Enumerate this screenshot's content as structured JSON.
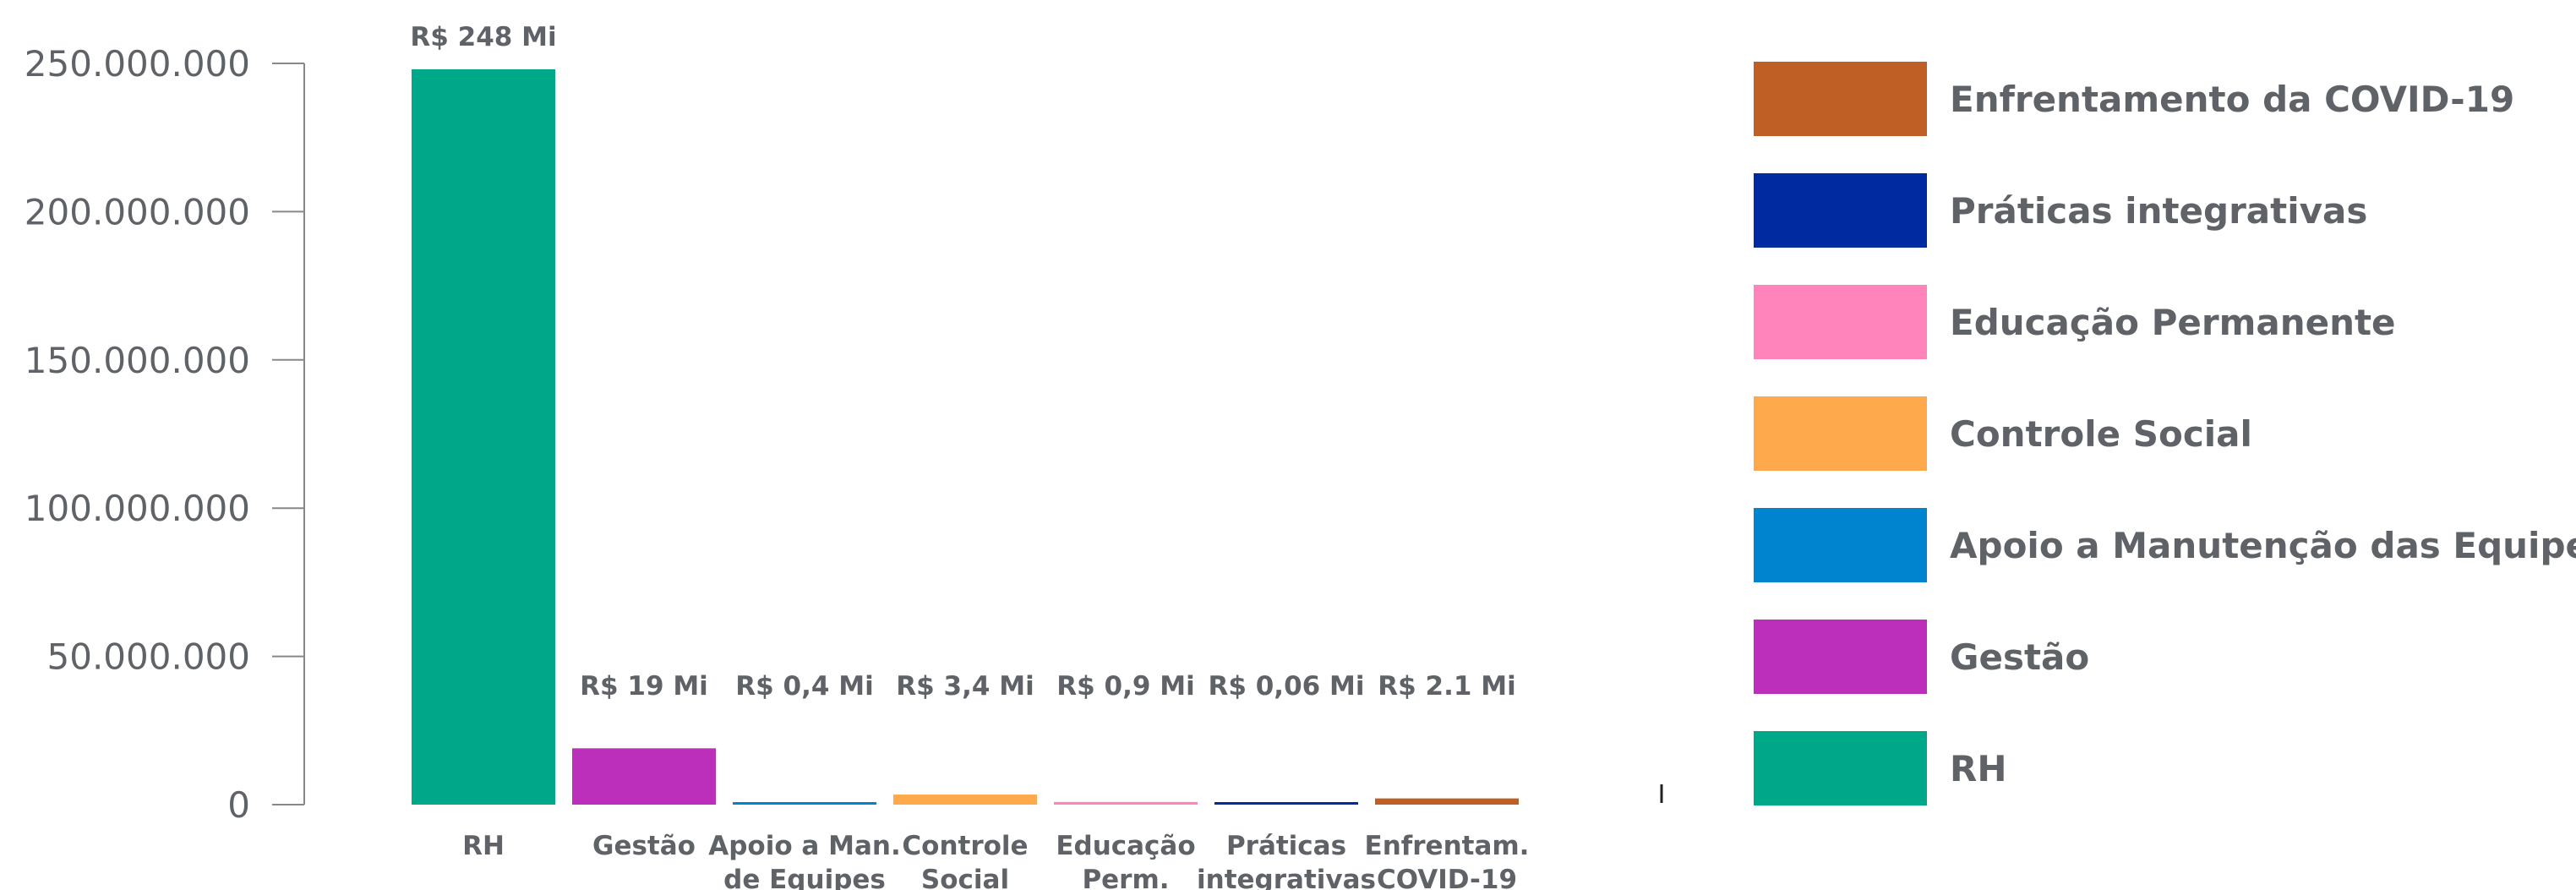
{
  "chart_data": {
    "type": "bar",
    "title": "",
    "xlabel": "",
    "ylabel": "",
    "ylim": [
      0,
      250000000
    ],
    "yticks": [
      0,
      50000000,
      100000000,
      150000000,
      200000000,
      250000000
    ],
    "ytick_labels": [
      "0",
      "50.000.000",
      "100.000.000",
      "150.000.000",
      "200.000.000",
      "250.000.000"
    ],
    "grid": false,
    "legend_position": "right",
    "categories": [
      [
        "RH"
      ],
      [
        "Gestão"
      ],
      [
        "Apoio a Man.",
        "de Equipes"
      ],
      [
        "Controle",
        "Social"
      ],
      [
        "Educação",
        "Perm."
      ],
      [
        "Práticas",
        "integrativas"
      ],
      [
        "Enfrentam.",
        "COVID-19"
      ]
    ],
    "values": [
      248000000,
      19000000,
      400000,
      3400000,
      900000,
      60000,
      2100000
    ],
    "data_labels": [
      "R$ 248 Mi",
      "R$ 19 Mi",
      "R$ 0,4 Mi",
      "R$ 3,4 Mi",
      "R$ 0,9 Mi",
      "R$ 0,06 Mi",
      "R$ 2.1 Mi"
    ],
    "colors": [
      "#00a88a",
      "#bb2fba",
      "#0084cf",
      "#fea94c",
      "#ff84bb",
      "#002aa0",
      "#c05f25"
    ],
    "legend": [
      {
        "label": "Enfrentamento da COVID-19",
        "color": "#c05f25"
      },
      {
        "label": "Práticas integrativas",
        "color": "#002aa0"
      },
      {
        "label": "Educação Permanente",
        "color": "#ff84bb"
      },
      {
        "label": "Controle Social",
        "color": "#fea94c"
      },
      {
        "label": "Apoio a Manutenção das Equipes...",
        "color": "#0084cf"
      },
      {
        "label": "Gestão",
        "color": "#bb2fba"
      },
      {
        "label": "RH",
        "color": "#00a88a"
      }
    ]
  }
}
